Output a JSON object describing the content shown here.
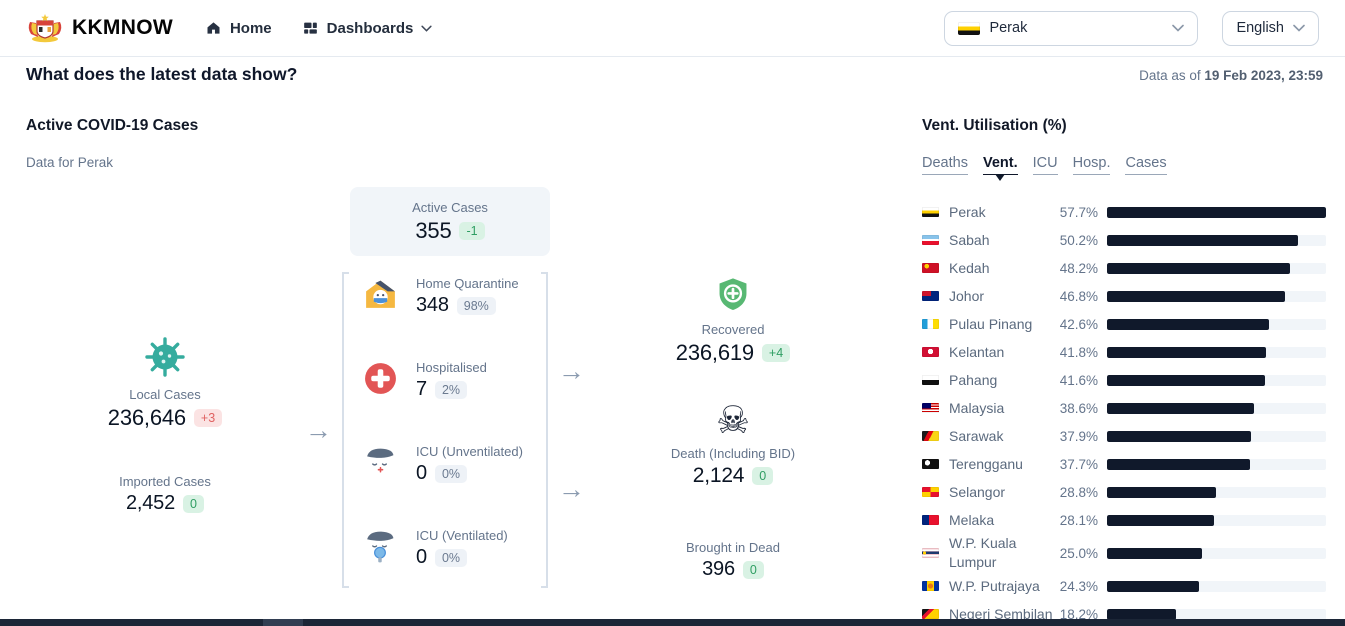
{
  "navbar": {
    "brand": "KKMNOW",
    "home_label": "Home",
    "dashboards_label": "Dashboards",
    "state_selector": {
      "label": "Perak"
    },
    "language_selector": {
      "label": "English"
    }
  },
  "header": {
    "title": "What does the latest data show?",
    "data_as_of_prefix": "Data as of ",
    "data_as_of_date": "19 Feb 2023, 23:59"
  },
  "flow": {
    "section_title": "Active COVID-19 Cases",
    "section_subtitle": "Data for Perak",
    "local_cases": {
      "label": "Local Cases",
      "value": "236,646",
      "delta": "+3"
    },
    "imported_cases": {
      "label": "Imported Cases",
      "value": "2,452",
      "delta": "0"
    },
    "active_cases": {
      "label": "Active Cases",
      "value": "355",
      "delta": "-1"
    },
    "home_quarantine": {
      "label": "Home Quarantine",
      "value": "348",
      "share": "98%"
    },
    "hospitalised": {
      "label": "Hospitalised",
      "value": "7",
      "share": "2%"
    },
    "icu_unventilated": {
      "label": "ICU (Unventilated)",
      "value": "0",
      "share": "0%"
    },
    "icu_ventilated": {
      "label": "ICU (Ventilated)",
      "value": "0",
      "share": "0%"
    },
    "recovered": {
      "label": "Recovered",
      "value": "236,619",
      "delta": "+4"
    },
    "death": {
      "label": "Death (Including BID)",
      "value": "2,124",
      "delta": "0"
    },
    "brought_in_dead": {
      "label": "Brought in Dead",
      "value": "396",
      "delta": "0"
    }
  },
  "vent_panel": {
    "title": "Vent. Utilisation (%)",
    "tabs": [
      {
        "label": "Deaths",
        "active": false
      },
      {
        "label": "Vent.",
        "active": true
      },
      {
        "label": "ICU",
        "active": false
      },
      {
        "label": "Hosp.",
        "active": false
      },
      {
        "label": "Cases",
        "active": false
      }
    ],
    "chart_data": {
      "type": "bar",
      "orientation": "horizontal",
      "title": "Vent. Utilisation (%)",
      "value_suffix": "%",
      "scale_note": "bar widths relative to max value (57.7)",
      "bar_color": "#10192b",
      "track_color": "#f1f5f9",
      "categories": [
        "Perak",
        "Sabah",
        "Kedah",
        "Johor",
        "Pulau Pinang",
        "Kelantan",
        "Pahang",
        "Malaysia",
        "Sarawak",
        "Terengganu",
        "Selangor",
        "Melaka",
        "W.P. Kuala Lumpur",
        "W.P. Putrajaya",
        "Negeri Sembilan"
      ],
      "values": [
        57.7,
        50.2,
        48.2,
        46.8,
        42.6,
        41.8,
        41.6,
        38.6,
        37.9,
        37.7,
        28.8,
        28.1,
        25.0,
        24.3,
        18.2
      ],
      "value_labels": [
        "57.7%",
        "50.2%",
        "48.2%",
        "46.8%",
        "42.6%",
        "41.8%",
        "41.6%",
        "38.6%",
        "37.9%",
        "37.7%",
        "28.8%",
        "28.1%",
        "25.0%",
        "24.3%",
        "18.2%"
      ],
      "flags": [
        "linear-gradient(180deg,#ffffff 0 33%,#ffd100 33% 66%,#121212 66%)",
        "linear-gradient(180deg,#88c3ea 0 38%,#ffffff 38% 62%,#e8112d 62%)",
        "radial-gradient(circle at 28% 32%,#ffd100 0 2.2px,rgba(0,0,0,0) 2.3px),linear-gradient(#ce1126,#ce1126)",
        "linear-gradient(#cf142b,#cf142b) 0 0/55% 50% no-repeat,linear-gradient(#01247d,#01247d)",
        "linear-gradient(90deg,#219ed9 0 33%,#ffffff 33% 66%,#fddd04 66%)",
        "radial-gradient(circle at 50% 45%,#ffffff 0 2.6px,rgba(0,0,0,0) 2.7px),linear-gradient(#d21034,#d21034)",
        "linear-gradient(180deg,#ffffff 0 50%,#101010 50%)",
        "linear-gradient(#010066,#010066) 0 0/55% 55% no-repeat,repeating-linear-gradient(180deg,#cc0001 0 1.3px,#ffffff 1.3px 2.6px)",
        "linear-gradient(118deg,#1b1b1b 0 30%,#e30613 30% 52%,#f9d616 52%)",
        "radial-gradient(circle at 32% 38%,#ffffff 0 2.6px,rgba(0,0,0,0) 2.7px),linear-gradient(#111111,#111111)",
        "conic-gradient(#ffd100 0 25%,#e8112d 25% 50%,#ffd100 50% 75%,#e8112d 75%)",
        "linear-gradient(90deg,#01247d 0 42%,#e8112d 42%)",
        "radial-gradient(circle at 15% 50%,#ffd100 0 1.5px,rgba(0,0,0,0) 1.6px),linear-gradient(rgba(0,0,0,0) 0 35%,#1f3a6e 35% 62%,rgba(0,0,0,0) 62%),repeating-linear-gradient(180deg,#f4c7cd 0 1.4px,#ffffff 1.4px 2.8px)",
        "radial-gradient(circle at 50% 50%,#e77817 0 2.5px,rgba(0,0,0,0) 2.6px),linear-gradient(90deg,#0032a0 0 28%,#ffd100 28% 72%,#0032a0 72%)",
        "linear-gradient(135deg,#161616 0 26%,#e8112d 26% 46%,#ffd100 46%)"
      ]
    }
  },
  "colors": {
    "accent_dark": "#10192b",
    "badge_red_text": "#e06262",
    "badge_green_text": "#2f9e63",
    "virus_teal": "#35ac9e",
    "shield_green": "#58b873",
    "hospital_red": "#e25555"
  }
}
